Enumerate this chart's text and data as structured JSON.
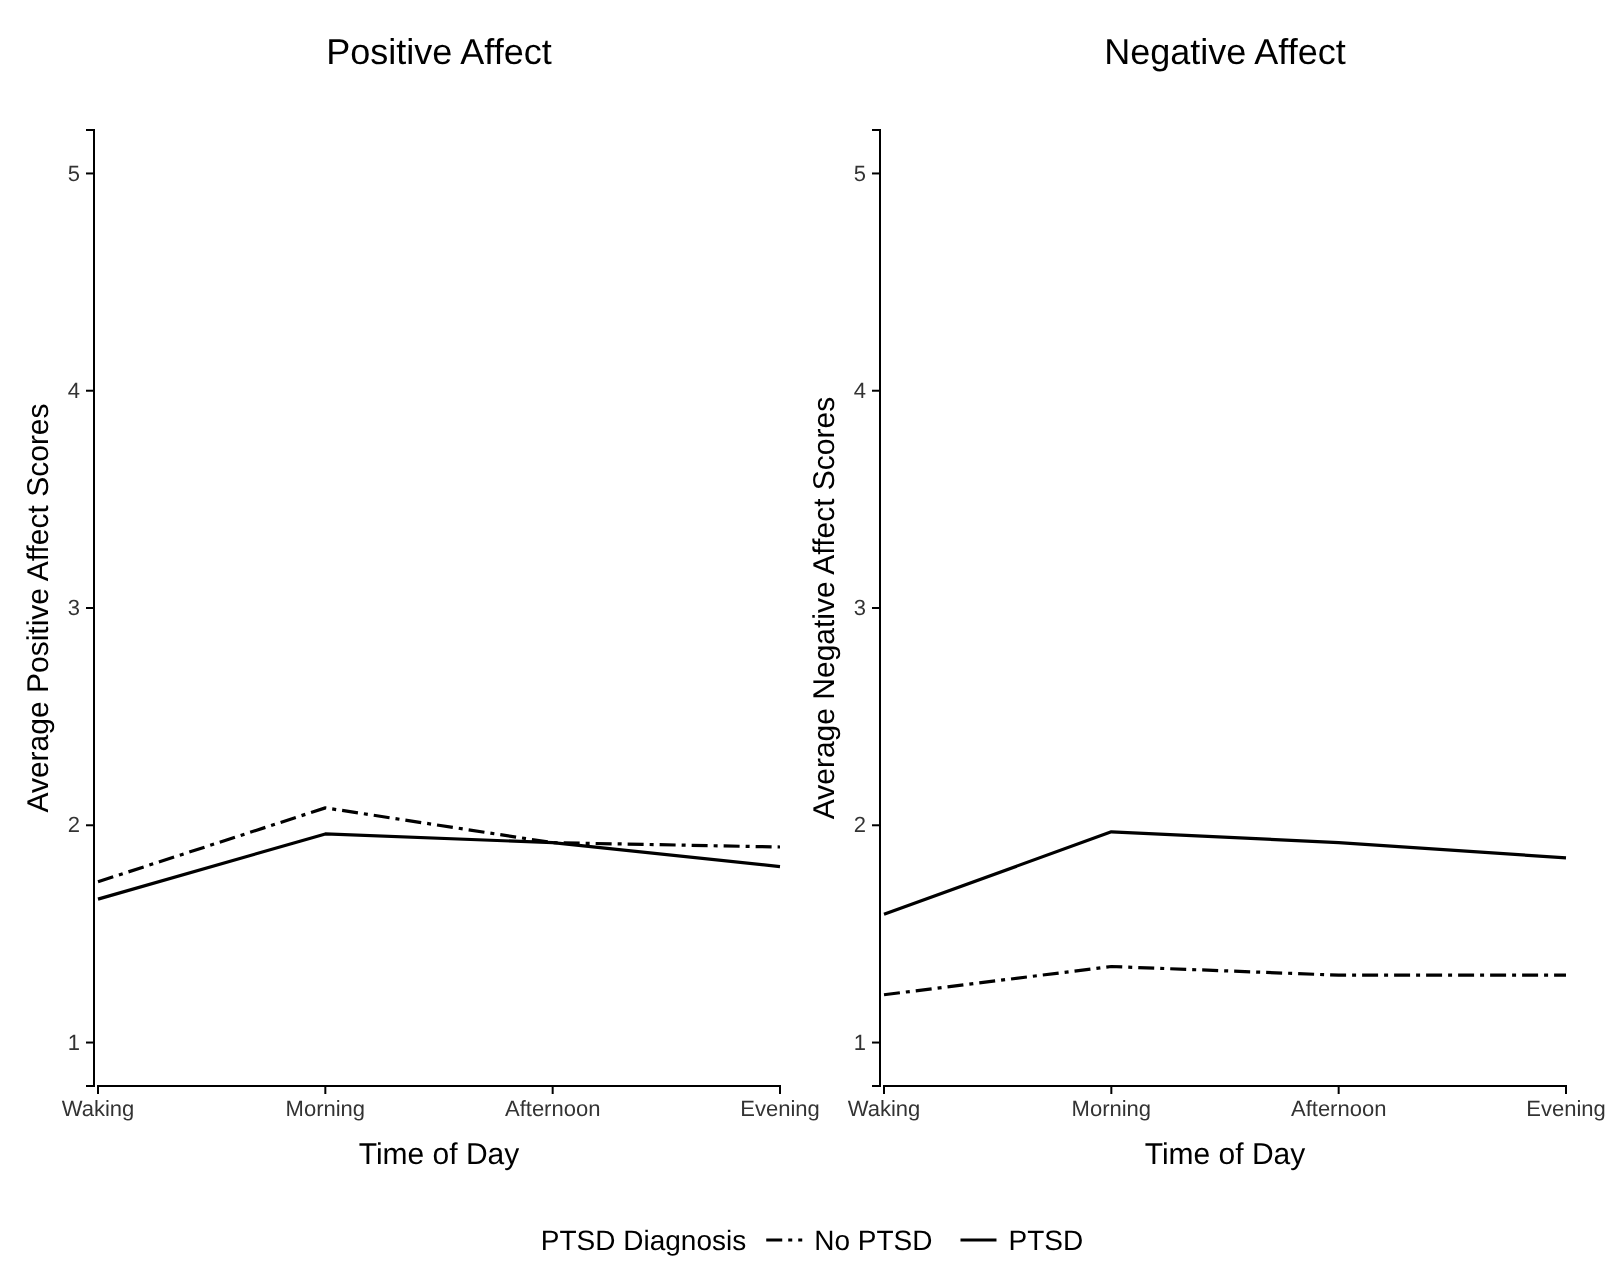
{
  "chart_data": [
    {
      "type": "line",
      "title": "Positive Affect",
      "xlabel": "Time of Day",
      "ylabel": "Average Positive Affect Scores",
      "categories": [
        "Waking",
        "Morning",
        "Afternoon",
        "Evening"
      ],
      "ylim": [
        0.8,
        5.2
      ],
      "yticks": [
        1,
        2,
        3,
        4,
        5
      ],
      "grid": false,
      "legend": "bottom",
      "legend_title": "PTSD Diagnosis",
      "marker": "none",
      "series": [
        {
          "name": "No PTSD",
          "color": "#000000",
          "line_style": "dashdot",
          "values": [
            1.74,
            2.08,
            1.92,
            1.9
          ]
        },
        {
          "name": "PTSD",
          "color": "#000000",
          "line_style": "solid",
          "values": [
            1.66,
            1.96,
            1.92,
            1.81
          ]
        }
      ]
    },
    {
      "type": "line",
      "title": "Negative Affect",
      "xlabel": "Time of Day",
      "ylabel": "Average Negative Affect Scores",
      "categories": [
        "Waking",
        "Morning",
        "Afternoon",
        "Evening"
      ],
      "ylim": [
        0.8,
        5.2
      ],
      "yticks": [
        1,
        2,
        3,
        4,
        5
      ],
      "grid": false,
      "marker": "none",
      "series": [
        {
          "color": "#000000",
          "line_style": "dashdot",
          "values": [
            1.22,
            1.35,
            1.31,
            1.31
          ]
        },
        {
          "color": "#000000",
          "line_style": "solid",
          "values": [
            1.59,
            1.97,
            1.92,
            1.85
          ]
        }
      ]
    }
  ]
}
